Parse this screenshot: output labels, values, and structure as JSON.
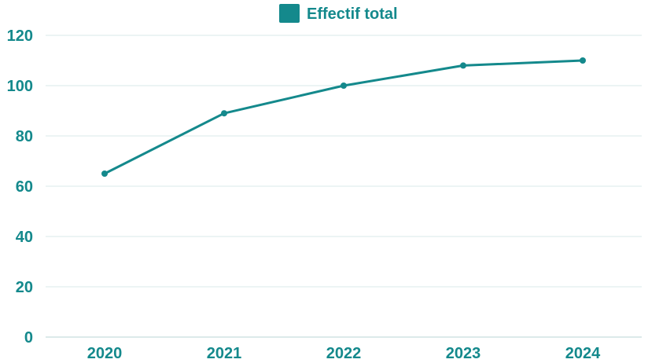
{
  "chart_data": {
    "type": "line",
    "title": "",
    "xlabel": "",
    "ylabel": "",
    "categories": [
      "2020",
      "2021",
      "2022",
      "2023",
      "2024"
    ],
    "series": [
      {
        "name": "Effectif total",
        "values": [
          65,
          89,
          100,
          108,
          110
        ]
      }
    ],
    "ylim": [
      0,
      120
    ],
    "yticks": [
      0,
      20,
      40,
      60,
      80,
      100,
      120
    ],
    "grid": true,
    "legend": "top-center"
  },
  "colors": {
    "series": "#14898c",
    "text": "#14898c",
    "grid": "#d9eaea",
    "axis": "#b8d6d6"
  }
}
